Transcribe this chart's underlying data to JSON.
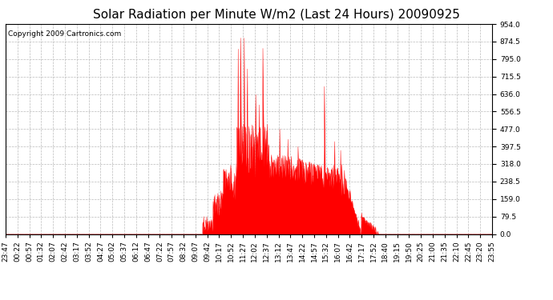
{
  "title": "Solar Radiation per Minute W/m2 (Last 24 Hours) 20090925",
  "copyright": "Copyright 2009 Cartronics.com",
  "yticks": [
    0.0,
    79.5,
    159.0,
    238.5,
    318.0,
    397.5,
    477.0,
    556.5,
    636.0,
    715.5,
    795.0,
    874.5,
    954.0
  ],
  "ymax": 954.0,
  "ymin": 0.0,
  "fill_color": "#FF0000",
  "line_color": "#FF0000",
  "background_color": "#FFFFFF",
  "grid_color": "#BBBBBB",
  "baseline_color": "#FF0000",
  "xtick_labels": [
    "23:47",
    "00:22",
    "00:57",
    "01:32",
    "02:07",
    "02:42",
    "03:17",
    "03:52",
    "04:27",
    "05:02",
    "05:37",
    "06:12",
    "06:47",
    "07:22",
    "07:57",
    "08:32",
    "09:07",
    "09:42",
    "10:17",
    "10:52",
    "11:27",
    "12:02",
    "12:37",
    "13:12",
    "13:47",
    "14:22",
    "14:57",
    "15:32",
    "16:07",
    "16:42",
    "17:17",
    "17:52",
    "18:40",
    "19:15",
    "19:50",
    "20:25",
    "21:00",
    "21:35",
    "22:10",
    "22:45",
    "23:20",
    "23:55"
  ],
  "title_fontsize": 11,
  "copyright_fontsize": 6.5,
  "tick_fontsize": 6.5
}
